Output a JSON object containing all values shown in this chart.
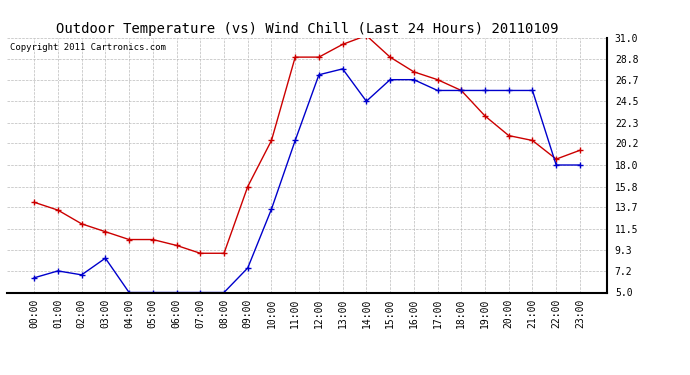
{
  "title": "Outdoor Temperature (vs) Wind Chill (Last 24 Hours) 20110109",
  "copyright": "Copyright 2011 Cartronics.com",
  "x_labels": [
    "00:00",
    "01:00",
    "02:00",
    "03:00",
    "04:00",
    "05:00",
    "06:00",
    "07:00",
    "08:00",
    "09:00",
    "10:00",
    "11:00",
    "12:00",
    "13:00",
    "14:00",
    "15:00",
    "16:00",
    "17:00",
    "18:00",
    "19:00",
    "20:00",
    "21:00",
    "22:00",
    "23:00"
  ],
  "temp_red": [
    14.2,
    13.4,
    12.0,
    11.2,
    10.4,
    10.4,
    9.8,
    9.0,
    9.0,
    15.8,
    20.5,
    29.0,
    29.0,
    30.3,
    31.2,
    29.0,
    27.5,
    26.7,
    25.6,
    23.0,
    21.0,
    20.5,
    18.6,
    19.5
  ],
  "wind_blue": [
    6.5,
    7.2,
    6.8,
    8.5,
    5.0,
    5.0,
    5.0,
    5.0,
    5.0,
    7.5,
    13.5,
    20.5,
    27.2,
    27.8,
    24.5,
    26.7,
    26.7,
    25.6,
    25.6,
    25.6,
    25.6,
    25.6,
    18.0,
    18.0
  ],
  "ylim": [
    5.0,
    31.0
  ],
  "yticks": [
    5.0,
    7.2,
    9.3,
    11.5,
    13.7,
    15.8,
    18.0,
    20.2,
    22.3,
    24.5,
    26.7,
    28.8,
    31.0
  ],
  "red_color": "#cc0000",
  "blue_color": "#0000cc",
  "bg_color": "#ffffff",
  "grid_color": "#bbbbbb",
  "title_fontsize": 10,
  "copyright_fontsize": 6.5,
  "tick_fontsize": 7
}
